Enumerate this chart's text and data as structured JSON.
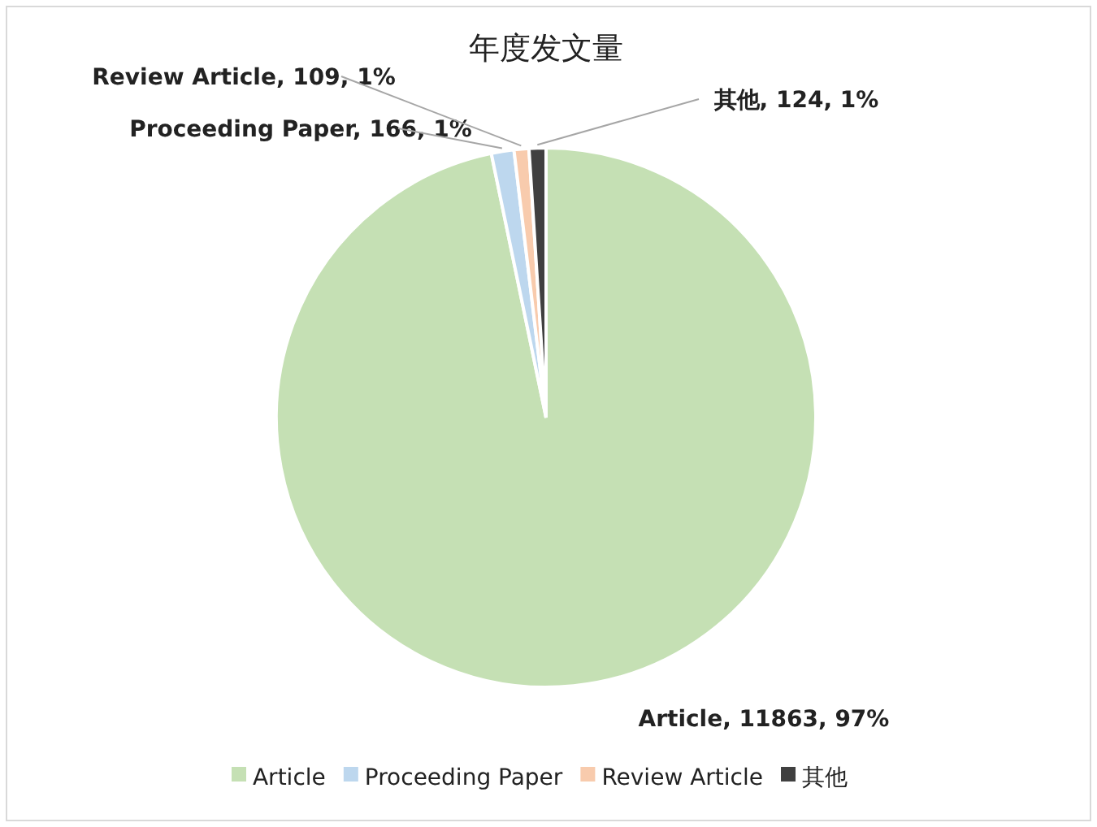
{
  "chart_data": {
    "type": "pie",
    "title": "年度发文量",
    "categories": [
      "Article",
      "Proceeding Paper",
      "Review Article",
      "其他"
    ],
    "values": [
      11863,
      166,
      109,
      124
    ],
    "colors": [
      "#c5e0b4",
      "#bdd7ee",
      "#f8cbad",
      "#404040"
    ],
    "value_labels": [
      "Article, 11863, 97%",
      "Proceeding Paper, 166, 1%",
      "Review Article, 109, 1%",
      "其他, 124, 1%"
    ],
    "legend": "bottom"
  }
}
